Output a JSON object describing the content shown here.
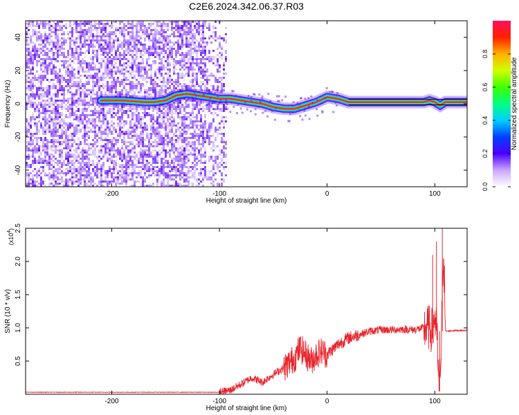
{
  "title": "C2E6.2024.342.06.37.R03",
  "chart_data": [
    {
      "type": "heatmap",
      "xlabel": "Height of straight line (km)",
      "ylabel": "Frequency (Hz)",
      "xlim": [
        -280,
        130
      ],
      "ylim": [
        -50,
        50
      ],
      "xticks": [
        -200,
        -100,
        0,
        100
      ],
      "yticks": [
        -40,
        -20,
        0,
        20,
        40
      ],
      "colorbar": {
        "label": "Normalized spectral amplitude",
        "ticks": [
          0.0,
          0.2,
          0.4,
          0.6,
          0.8
        ],
        "range": [
          0,
          1
        ]
      },
      "ridge": {
        "x": [
          -200,
          -190,
          -180,
          -170,
          -160,
          -150,
          -140,
          -130,
          -120,
          -110,
          -100,
          -90,
          -80,
          -70,
          -60,
          -50,
          -40,
          -30,
          -20,
          -10,
          0,
          10,
          20,
          30,
          40,
          50,
          60,
          70,
          80,
          90,
          95,
          100,
          105,
          110,
          120,
          130
        ],
        "y": [
          2,
          2,
          1.5,
          1,
          1,
          2,
          5,
          6,
          5,
          4,
          3,
          3,
          2,
          1,
          0,
          -2,
          -3,
          -3,
          -1,
          1,
          4,
          3,
          1,
          1,
          1,
          1,
          1,
          1,
          1,
          1,
          2,
          1,
          -1,
          1,
          1,
          1
        ]
      },
      "noise_region_xmax": -93
    },
    {
      "type": "line",
      "xlabel": "Height of straight line (km)",
      "ylabel": "SNR (10 * v/v)",
      "y_multiplier": "(x10",
      "y_multiplier_exp": "4",
      "y_multiplier_close": ")",
      "xlim": [
        -280,
        130
      ],
      "ylim": [
        0,
        2.5
      ],
      "xticks": [
        -200,
        -100,
        0,
        100
      ],
      "yticks": [
        0.5,
        1.0,
        1.5,
        2.0,
        2.5
      ],
      "line_color": "#e8242c",
      "series": [
        {
          "x": [
            -280,
            -250,
            -200,
            -150,
            -110,
            -100,
            -90,
            -80,
            -70,
            -60,
            -50,
            -40,
            -30,
            -25,
            -20,
            -15,
            -10,
            -5,
            0,
            10,
            20,
            30,
            40,
            50,
            60,
            70,
            80,
            90,
            95,
            98,
            100,
            102,
            104,
            106,
            108,
            110,
            120,
            130
          ],
          "y": [
            0.03,
            0.03,
            0.03,
            0.03,
            0.03,
            0.03,
            0.06,
            0.15,
            0.25,
            0.18,
            0.3,
            0.4,
            0.55,
            0.7,
            0.6,
            0.5,
            0.6,
            0.65,
            0.6,
            0.75,
            0.85,
            0.9,
            0.95,
            0.97,
            0.97,
            0.98,
            0.97,
            1.0,
            1.0,
            0.95,
            1.2,
            0.9,
            0.05,
            0.7,
            2.3,
            0.95,
            0.96,
            0.96
          ]
        }
      ]
    }
  ]
}
